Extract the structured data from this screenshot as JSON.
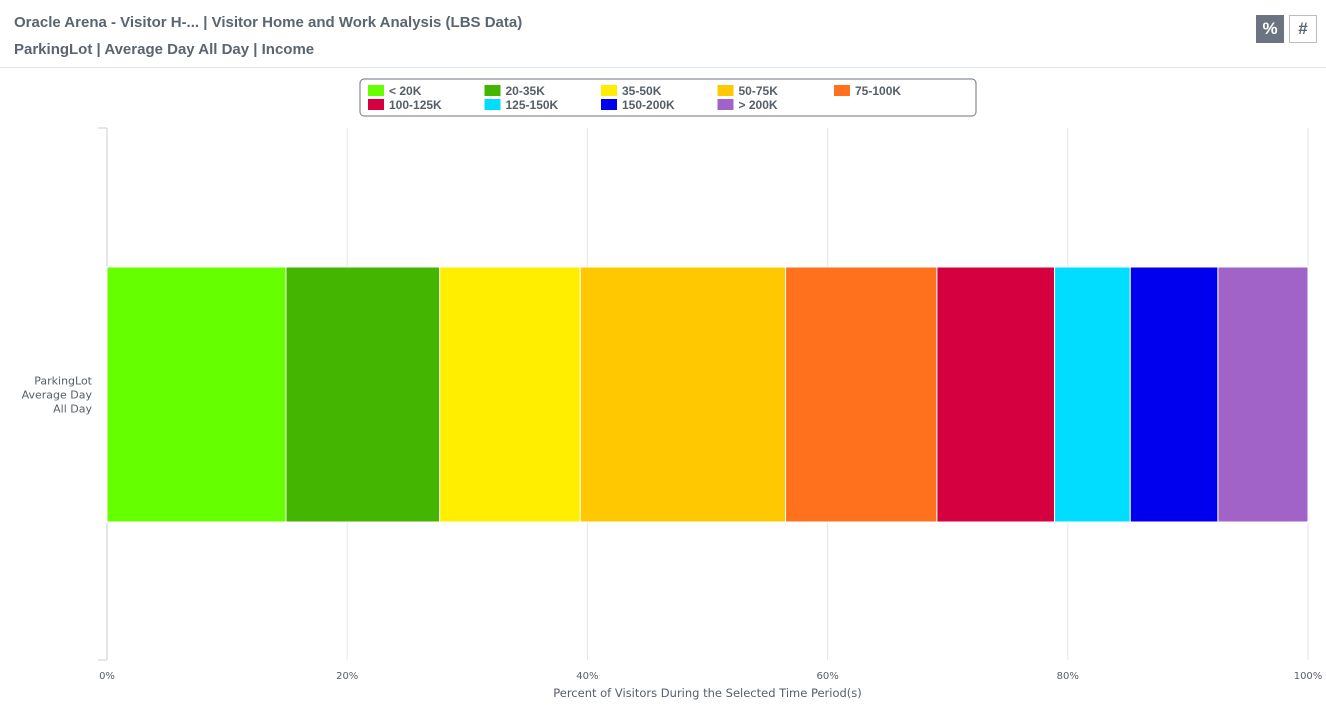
{
  "header": {
    "title_line_1": "Oracle Arena - Visitor H-... | Visitor Home and Work Analysis (LBS Data)",
    "title_line_2": "ParkingLot | Average Day All Day | Income",
    "toggle_percent_label": "%",
    "toggle_count_label": "#",
    "active_toggle": "percent"
  },
  "chart_data": {
    "type": "bar",
    "orientation": "horizontal",
    "stacked": true,
    "categories": [
      [
        "ParkingLot",
        "Average Day",
        "All Day"
      ]
    ],
    "series": [
      {
        "name": "< 20K",
        "color": "#66ff00",
        "values": [
          14.9
        ]
      },
      {
        "name": "20-35K",
        "color": "#44b500",
        "values": [
          12.8
        ]
      },
      {
        "name": "35-50K",
        "color": "#ffee00",
        "values": [
          11.7
        ]
      },
      {
        "name": "50-75K",
        "color": "#ffc800",
        "values": [
          17.1
        ]
      },
      {
        "name": "75-100K",
        "color": "#ff711c",
        "values": [
          12.6
        ]
      },
      {
        "name": "100-125K",
        "color": "#d4003f",
        "values": [
          9.8
        ]
      },
      {
        "name": "125-150K",
        "color": "#00ddff",
        "values": [
          6.3
        ]
      },
      {
        "name": "150-200K",
        "color": "#0000ee",
        "values": [
          7.3
        ]
      },
      {
        "name": "> 200K",
        "color": "#a263c8",
        "values": [
          7.5
        ]
      }
    ],
    "xlim": [
      0,
      100
    ],
    "x_ticks": [
      "0%",
      "20%",
      "40%",
      "60%",
      "80%",
      "100%"
    ],
    "xlabel": "Percent of Visitors During the Selected Time Period(s)",
    "ylabel": "",
    "grid": true,
    "legend_position": "top-center"
  }
}
